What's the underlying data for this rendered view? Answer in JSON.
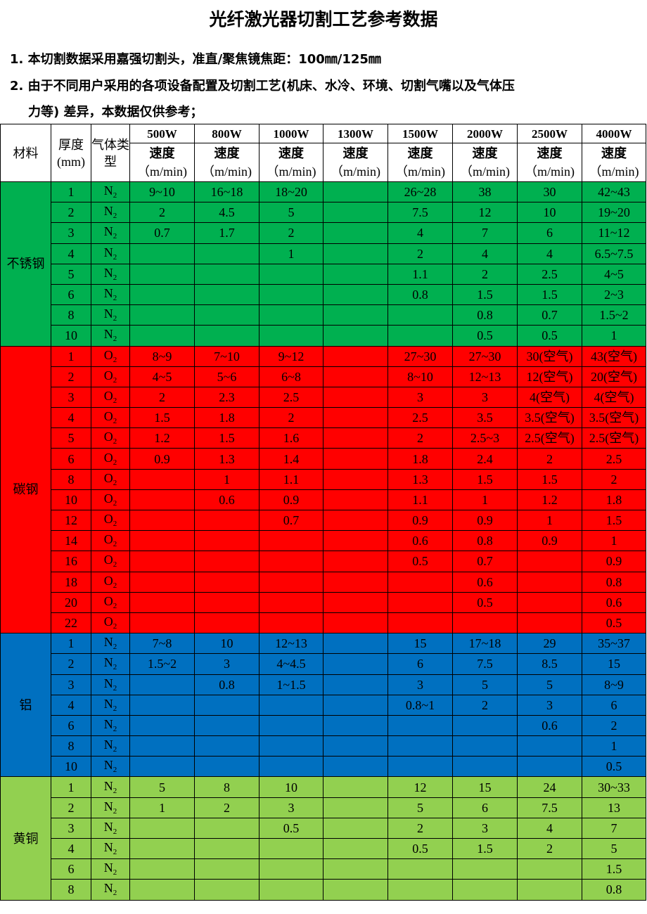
{
  "title": "光纤激光器切割工艺参考数据",
  "notes": [
    "1. 本切割数据采用嘉强切割头，准直/聚焦镜焦距：100㎜/125㎜",
    "2. 由于不同用户采用的各项设备配置及切割工艺(机床、水冷、环境、切割气嘴以及气体压",
    "力等) 差异，本数据仅供参考；"
  ],
  "table": {
    "headers": {
      "material": "材料",
      "thickness": "厚度(mm)",
      "gas": "气体类型",
      "speed": "速度",
      "unit": "（m/min)"
    },
    "powers": [
      "500W",
      "800W",
      "1000W",
      "1300W",
      "1500W",
      "2000W",
      "2500W",
      "4000W"
    ],
    "materials": [
      {
        "name": "不锈钢",
        "color": "#00b050",
        "gas": "N",
        "gas_sub": "2",
        "rows": [
          {
            "t": "1",
            "s": [
              "9~10",
              "16~18",
              "18~20",
              "",
              "26~28",
              "38",
              "30",
              "42~43"
            ]
          },
          {
            "t": "2",
            "s": [
              "2",
              "4.5",
              "5",
              "",
              "7.5",
              "12",
              "10",
              "19~20"
            ]
          },
          {
            "t": "3",
            "s": [
              "0.7",
              "1.7",
              "2",
              "",
              "4",
              "7",
              "6",
              "11~12"
            ]
          },
          {
            "t": "4",
            "s": [
              "",
              "",
              "1",
              "",
              "2",
              "4",
              "4",
              "6.5~7.5"
            ]
          },
          {
            "t": "5",
            "s": [
              "",
              "",
              "",
              "",
              "1.1",
              "2",
              "2.5",
              "4~5"
            ]
          },
          {
            "t": "6",
            "s": [
              "",
              "",
              "",
              "",
              "0.8",
              "1.5",
              "1.5",
              "2~3"
            ]
          },
          {
            "t": "8",
            "s": [
              "",
              "",
              "",
              "",
              "",
              "0.8",
              "0.7",
              "1.5~2"
            ]
          },
          {
            "t": "10",
            "s": [
              "",
              "",
              "",
              "",
              "",
              "0.5",
              "0.5",
              "1"
            ]
          }
        ]
      },
      {
        "name": "碳钢",
        "color": "#ff0000",
        "gas": "O",
        "gas_sub": "2",
        "rows": [
          {
            "t": "1",
            "s": [
              "8~9",
              "7~10",
              "9~12",
              "",
              "27~30",
              "27~30",
              "30(空气)",
              "43(空气)"
            ]
          },
          {
            "t": "2",
            "s": [
              "4~5",
              "5~6",
              "6~8",
              "",
              "8~10",
              "12~13",
              "12(空气)",
              "20(空气)"
            ]
          },
          {
            "t": "3",
            "s": [
              "2",
              "2.3",
              "2.5",
              "",
              "3",
              "3",
              "4(空气)",
              "4(空气)"
            ]
          },
          {
            "t": "4",
            "s": [
              "1.5",
              "1.8",
              "2",
              "",
              "2.5",
              "3.5",
              "3.5(空气)",
              "3.5(空气)"
            ]
          },
          {
            "t": "5",
            "s": [
              "1.2",
              "1.5",
              "1.6",
              "",
              "2",
              "2.5~3",
              "2.5(空气)",
              "2.5(空气)"
            ]
          },
          {
            "t": "6",
            "s": [
              "0.9",
              "1.3",
              "1.4",
              "",
              "1.8",
              "2.4",
              "2",
              "2.5"
            ]
          },
          {
            "t": "8",
            "s": [
              "",
              "1",
              "1.1",
              "",
              "1.3",
              "1.5",
              "1.5",
              "2"
            ]
          },
          {
            "t": "10",
            "s": [
              "",
              "0.6",
              "0.9",
              "",
              "1.1",
              "1",
              "1.2",
              "1.8"
            ]
          },
          {
            "t": "12",
            "s": [
              "",
              "",
              "0.7",
              "",
              "0.9",
              "0.9",
              "1",
              "1.5"
            ]
          },
          {
            "t": "14",
            "s": [
              "",
              "",
              "",
              "",
              "0.6",
              "0.8",
              "0.9",
              "1"
            ]
          },
          {
            "t": "16",
            "s": [
              "",
              "",
              "",
              "",
              "0.5",
              "0.7",
              "",
              "0.9"
            ]
          },
          {
            "t": "18",
            "s": [
              "",
              "",
              "",
              "",
              "",
              "0.6",
              "",
              "0.8"
            ]
          },
          {
            "t": "20",
            "s": [
              "",
              "",
              "",
              "",
              "",
              "0.5",
              "",
              "0.6"
            ]
          },
          {
            "t": "22",
            "s": [
              "",
              "",
              "",
              "",
              "",
              "",
              "",
              "0.5"
            ]
          }
        ]
      },
      {
        "name": "铝",
        "color": "#0070c0",
        "gas": "N",
        "gas_sub": "2",
        "rows": [
          {
            "t": "1",
            "s": [
              "7~8",
              "10",
              "12~13",
              "",
              "15",
              "17~18",
              "29",
              "35~37"
            ]
          },
          {
            "t": "2",
            "s": [
              "1.5~2",
              "3",
              "4~4.5",
              "",
              "6",
              "7.5",
              "8.5",
              "15"
            ]
          },
          {
            "t": "3",
            "s": [
              "",
              "0.8",
              "1~1.5",
              "",
              "3",
              "5",
              "5",
              "8~9"
            ]
          },
          {
            "t": "4",
            "s": [
              "",
              "",
              "",
              "",
              "0.8~1",
              "2",
              "3",
              "6"
            ]
          },
          {
            "t": "6",
            "s": [
              "",
              "",
              "",
              "",
              "",
              "",
              "0.6",
              "2"
            ]
          },
          {
            "t": "8",
            "s": [
              "",
              "",
              "",
              "",
              "",
              "",
              "",
              "1"
            ]
          },
          {
            "t": "10",
            "s": [
              "",
              "",
              "",
              "",
              "",
              "",
              "",
              "0.5"
            ]
          }
        ]
      },
      {
        "name": "黄铜",
        "color": "#92d050",
        "gas": "N",
        "gas_sub": "2",
        "rows": [
          {
            "t": "1",
            "s": [
              "5",
              "8",
              "10",
              "",
              "12",
              "15",
              "24",
              "30~33"
            ]
          },
          {
            "t": "2",
            "s": [
              "1",
              "2",
              "3",
              "",
              "5",
              "6",
              "7.5",
              "13"
            ]
          },
          {
            "t": "3",
            "s": [
              "",
              "",
              "0.5",
              "",
              "2",
              "3",
              "4",
              "7"
            ]
          },
          {
            "t": "4",
            "s": [
              "",
              "",
              "",
              "",
              "0.5",
              "1.5",
              "2",
              "5"
            ]
          },
          {
            "t": "6",
            "s": [
              "",
              "",
              "",
              "",
              "",
              "",
              "",
              "1.5"
            ]
          },
          {
            "t": "8",
            "s": [
              "",
              "",
              "",
              "",
              "",
              "",
              "",
              "0.8"
            ]
          }
        ]
      }
    ]
  }
}
